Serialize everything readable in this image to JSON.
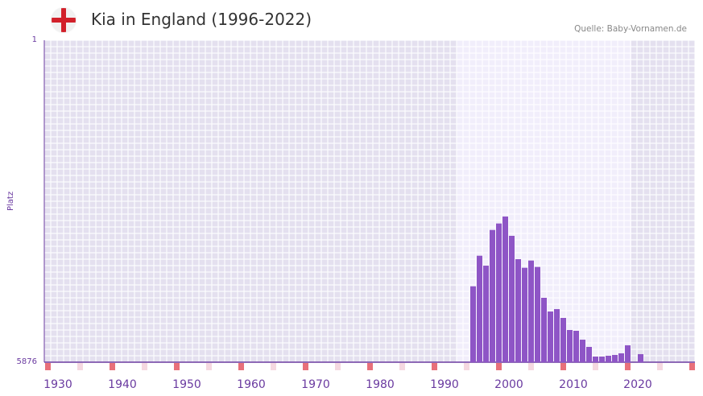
{
  "header": {
    "title": "Kia in England (1996-2022)",
    "source": "Quelle: Baby-Vornamen.de",
    "flag_icon": "england-flag-icon"
  },
  "chart_data": {
    "type": "bar",
    "title": "Kia in England (1996-2022)",
    "xlabel": "",
    "ylabel": "Platz",
    "ylim": [
      1,
      5876
    ],
    "y_inverted": true,
    "y_ticks": [
      "1",
      "5876"
    ],
    "x_range": [
      1928,
      2028
    ],
    "x_ticks": [
      "1930",
      "1940",
      "1950",
      "1960",
      "1970",
      "1980",
      "1990",
      "2000",
      "2010",
      "2020"
    ],
    "highlight_range": [
      1994,
      2021
    ],
    "bar_color": "#8e55c6",
    "x": [
      1996,
      1997,
      1998,
      1999,
      2000,
      2001,
      2002,
      2003,
      2004,
      2005,
      2006,
      2007,
      2008,
      2009,
      2010,
      2011,
      2012,
      2013,
      2014,
      2015,
      2016,
      2017,
      2018,
      2019,
      2020,
      2022
    ],
    "values": [
      4491,
      3933,
      4114,
      3463,
      3345,
      3218,
      3570,
      3996,
      4153,
      4021,
      4138,
      4701,
      4951,
      4907,
      5068,
      5288,
      5303,
      5465,
      5597,
      5773,
      5773,
      5758,
      5744,
      5714,
      5568,
      5729
    ]
  }
}
